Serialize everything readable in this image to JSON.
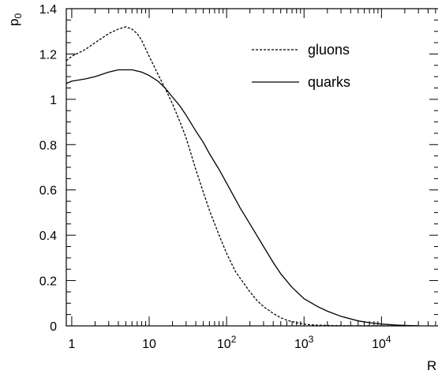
{
  "chart_data": {
    "type": "line",
    "ylabel": "p",
    "ylabel_subscript": "0",
    "xlabel": "R",
    "x_scale": "log",
    "xlim": [
      0.85,
      55000
    ],
    "ylim": [
      0,
      1.4
    ],
    "x_ticks": [
      {
        "value": 1,
        "base": "1",
        "exp": ""
      },
      {
        "value": 10,
        "base": "10",
        "exp": ""
      },
      {
        "value": 100,
        "base": "10",
        "exp": "2"
      },
      {
        "value": 1000,
        "base": "10",
        "exp": "3"
      },
      {
        "value": 10000,
        "base": "10",
        "exp": "4"
      }
    ],
    "y_ticks": [
      {
        "value": 0,
        "label": "0"
      },
      {
        "value": 0.2,
        "label": "0.2"
      },
      {
        "value": 0.4,
        "label": "0.4"
      },
      {
        "value": 0.6,
        "label": "0.6"
      },
      {
        "value": 0.8,
        "label": "0.8"
      },
      {
        "value": 1,
        "label": "1"
      },
      {
        "value": 1.2,
        "label": "1.2"
      },
      {
        "value": 1.4,
        "label": "1.4"
      }
    ],
    "legend_position": "top-right",
    "series": [
      {
        "name": "gluons",
        "style": "dashed",
        "color": "#000000",
        "x": [
          0.85,
          1,
          1.5,
          2,
          3,
          4,
          5,
          6,
          7,
          8,
          10,
          13,
          16,
          20,
          25,
          30,
          40,
          50,
          60,
          80,
          100,
          130,
          150,
          200,
          250,
          300,
          400,
          500,
          600,
          800,
          1000,
          1200,
          1500,
          2000,
          3000,
          5000,
          10000,
          20000
        ],
        "y": [
          1.17,
          1.19,
          1.22,
          1.25,
          1.29,
          1.31,
          1.32,
          1.31,
          1.29,
          1.26,
          1.19,
          1.11,
          1.05,
          0.98,
          0.9,
          0.83,
          0.69,
          0.59,
          0.51,
          0.4,
          0.32,
          0.24,
          0.21,
          0.15,
          0.11,
          0.085,
          0.055,
          0.036,
          0.025,
          0.014,
          0.008,
          0.005,
          0.003,
          0.002,
          0.0008,
          0.0003,
          0.0001,
          0
        ]
      },
      {
        "name": "quarks",
        "style": "solid",
        "color": "#000000",
        "x": [
          0.85,
          1,
          1.5,
          2,
          3,
          4,
          5,
          6,
          7,
          8,
          10,
          13,
          16,
          20,
          25,
          30,
          40,
          50,
          60,
          80,
          100,
          150,
          200,
          300,
          400,
          500,
          700,
          1000,
          1500,
          2000,
          3000,
          5000,
          7000,
          10000,
          15000,
          20000,
          30000
        ],
        "y": [
          1.07,
          1.08,
          1.09,
          1.1,
          1.12,
          1.13,
          1.13,
          1.13,
          1.125,
          1.12,
          1.105,
          1.08,
          1.05,
          1.01,
          0.97,
          0.93,
          0.86,
          0.81,
          0.76,
          0.69,
          0.63,
          0.52,
          0.45,
          0.35,
          0.28,
          0.23,
          0.17,
          0.12,
          0.085,
          0.065,
          0.042,
          0.022,
          0.014,
          0.008,
          0.004,
          0.002,
          0.0005
        ]
      }
    ]
  }
}
